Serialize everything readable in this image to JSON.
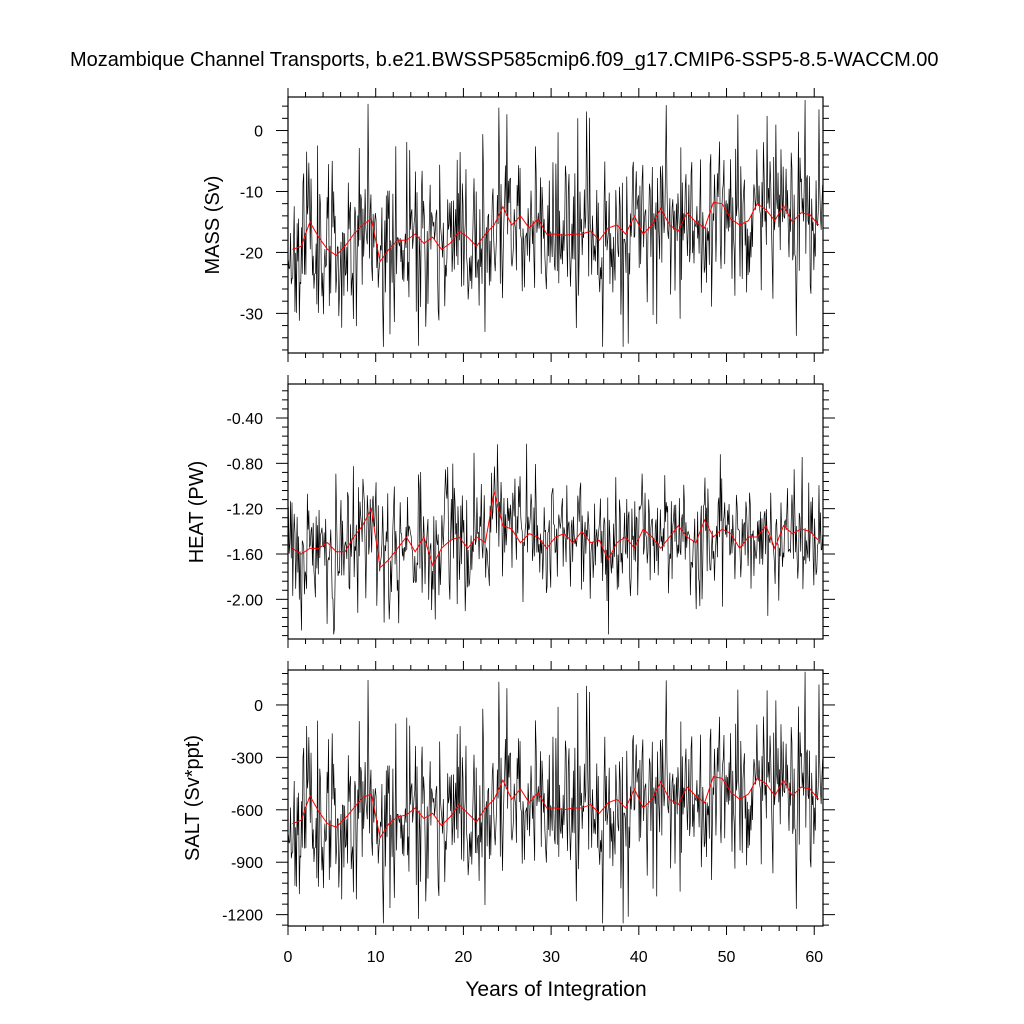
{
  "title": "Mozambique Channel Transports, b.e21.BWSSP585cmip6.f09_g17.CMIP6-SSP5-8.5-WACCM.00",
  "xlabel": "Years of Integration",
  "colors": {
    "monthly": "#000000",
    "annual": "#ff0000"
  },
  "chart_data": [
    {
      "type": "line",
      "ylabel": "MASS (Sv)",
      "xlim": [
        0,
        61
      ],
      "ylim": [
        -36.5,
        5.5
      ],
      "x_ticks": [
        0,
        10,
        20,
        30,
        40,
        50,
        60
      ],
      "y_ticks": [
        0,
        -10,
        -20,
        -30
      ],
      "y_tick_labels": [
        "0",
        "-10",
        "-20",
        "-30"
      ],
      "monthly": {
        "n": 732,
        "mean": -17,
        "amp": 6.5,
        "trend": 4,
        "seed": 11,
        "min": -35.5,
        "max": 5
      },
      "annual": {
        "x": [
          0.5,
          1.5,
          2.5,
          3.5,
          4.5,
          5.5,
          6.5,
          7.5,
          8.5,
          9.5,
          10.5,
          11.5,
          12.5,
          13.5,
          14.5,
          15.5,
          16.5,
          17.5,
          18.5,
          19.5,
          20.5,
          21.5,
          22.5,
          23.5,
          24.5,
          25.5,
          26.5,
          27.5,
          28.5,
          29.5,
          30.5,
          31.5,
          32.5,
          33.5,
          34.5,
          35.5,
          36.5,
          37.5,
          38.5,
          39.5,
          40.5,
          41.5,
          42.5,
          43.5,
          44.5,
          45.5,
          46.5,
          47.5,
          48.5,
          49.5,
          50.5,
          51.5,
          52.5,
          53.5,
          54.5,
          55.5,
          56.5,
          57.5,
          58.5,
          59.5,
          60.5
        ],
        "y": [
          -19.5,
          -19,
          -15,
          -17.5,
          -19.5,
          -20.5,
          -19,
          -17,
          -15.5,
          -14.5,
          -21.5,
          -19.5,
          -18,
          -18,
          -17,
          -18.5,
          -17.5,
          -19.5,
          -18.5,
          -16.5,
          -17.5,
          -19,
          -17,
          -15.5,
          -12.5,
          -15.5,
          -14,
          -16,
          -14.5,
          -17,
          -17,
          -17.2,
          -17,
          -17,
          -16.5,
          -18,
          -16,
          -15.5,
          -17,
          -14,
          -17,
          -15.5,
          -12.8,
          -15.5,
          -16.5,
          -13.5,
          -15,
          -16,
          -11.8,
          -12,
          -14.5,
          -15.5,
          -14.8,
          -12,
          -13,
          -14.8,
          -12.3,
          -15,
          -13.5,
          -13.8,
          -15.5
        ]
      }
    },
    {
      "type": "line",
      "ylabel": "HEAT (PW)",
      "xlim": [
        0,
        61
      ],
      "ylim": [
        -2.35,
        -0.1
      ],
      "x_ticks": [
        0,
        10,
        20,
        30,
        40,
        50,
        60
      ],
      "y_ticks": [
        -0.4,
        -0.8,
        -1.2,
        -1.6,
        -2.0
      ],
      "y_tick_labels": [
        "-0.40",
        "-0.80",
        "-1.20",
        "-1.60",
        "-2.00"
      ],
      "monthly": {
        "n": 732,
        "mean": -1.52,
        "amp": 0.26,
        "trend": 0.1,
        "seed": 29,
        "min": -2.32,
        "max": -0.12
      },
      "annual": {
        "x": [
          0.5,
          1.5,
          2.5,
          3.5,
          4.5,
          5.5,
          6.5,
          7.5,
          8.5,
          9.5,
          10.5,
          11.5,
          12.5,
          13.5,
          14.5,
          15.5,
          16.5,
          17.5,
          18.5,
          19.5,
          20.5,
          21.5,
          22.5,
          23.5,
          24.5,
          25.5,
          26.5,
          27.5,
          28.5,
          29.5,
          30.5,
          31.5,
          32.5,
          33.5,
          34.5,
          35.5,
          36.5,
          37.5,
          38.5,
          39.5,
          40.5,
          41.5,
          42.5,
          43.5,
          44.5,
          45.5,
          46.5,
          47.5,
          48.5,
          49.5,
          50.5,
          51.5,
          52.5,
          53.5,
          54.5,
          55.5,
          56.5,
          57.5,
          58.5,
          59.5,
          60.5
        ],
        "y": [
          -1.55,
          -1.6,
          -1.55,
          -1.55,
          -1.5,
          -1.58,
          -1.58,
          -1.45,
          -1.35,
          -1.2,
          -1.72,
          -1.65,
          -1.55,
          -1.45,
          -1.58,
          -1.45,
          -1.7,
          -1.55,
          -1.48,
          -1.45,
          -1.55,
          -1.45,
          -1.5,
          -1.05,
          -1.35,
          -1.38,
          -1.5,
          -1.42,
          -1.45,
          -1.55,
          -1.45,
          -1.42,
          -1.5,
          -1.4,
          -1.5,
          -1.48,
          -1.65,
          -1.5,
          -1.45,
          -1.55,
          -1.38,
          -1.45,
          -1.55,
          -1.45,
          -1.35,
          -1.45,
          -1.5,
          -1.3,
          -1.45,
          -1.38,
          -1.42,
          -1.55,
          -1.45,
          -1.45,
          -1.35,
          -1.55,
          -1.35,
          -1.42,
          -1.38,
          -1.4,
          -1.48
        ]
      }
    },
    {
      "type": "line",
      "ylabel": "SALT (Sv*ppt)",
      "xlim": [
        0,
        61
      ],
      "ylim": [
        -1265,
        200
      ],
      "x_ticks": [
        0,
        10,
        20,
        30,
        40,
        50,
        60
      ],
      "y_ticks": [
        0,
        -300,
        -600,
        -900,
        -1200
      ],
      "y_tick_labels": [
        "0",
        "-300",
        "-600",
        "-900",
        "-1200"
      ],
      "monthly": {
        "n": 732,
        "mean": -590,
        "amp": 225,
        "trend": 140,
        "seed": 11,
        "min": -1250,
        "max": 190
      },
      "annual": {
        "x": [
          0.5,
          1.5,
          2.5,
          3.5,
          4.5,
          5.5,
          6.5,
          7.5,
          8.5,
          9.5,
          10.5,
          11.5,
          12.5,
          13.5,
          14.5,
          15.5,
          16.5,
          17.5,
          18.5,
          19.5,
          20.5,
          21.5,
          22.5,
          23.5,
          24.5,
          25.5,
          26.5,
          27.5,
          28.5,
          29.5,
          30.5,
          31.5,
          32.5,
          33.5,
          34.5,
          35.5,
          36.5,
          37.5,
          38.5,
          39.5,
          40.5,
          41.5,
          42.5,
          43.5,
          44.5,
          45.5,
          46.5,
          47.5,
          48.5,
          49.5,
          50.5,
          51.5,
          52.5,
          53.5,
          54.5,
          55.5,
          56.5,
          57.5,
          58.5,
          59.5,
          60.5
        ],
        "y": [
          -680,
          -660,
          -520,
          -610,
          -680,
          -700,
          -650,
          -590,
          -530,
          -510,
          -760,
          -680,
          -640,
          -630,
          -590,
          -650,
          -620,
          -690,
          -640,
          -570,
          -620,
          -670,
          -590,
          -540,
          -430,
          -540,
          -480,
          -560,
          -500,
          -590,
          -590,
          -600,
          -590,
          -590,
          -570,
          -620,
          -560,
          -540,
          -590,
          -480,
          -590,
          -540,
          -440,
          -540,
          -570,
          -470,
          -520,
          -560,
          -410,
          -420,
          -500,
          -540,
          -510,
          -420,
          -450,
          -520,
          -430,
          -520,
          -470,
          -480,
          -540
        ]
      }
    }
  ]
}
